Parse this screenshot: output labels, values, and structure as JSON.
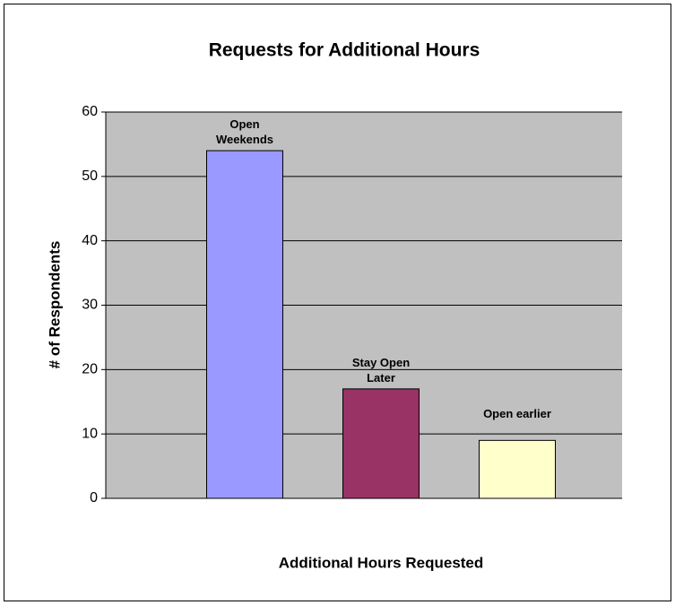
{
  "chart_data": {
    "type": "bar",
    "title": "Requests for Additional Hours",
    "y_label": "# of Respondents",
    "x_label": "Additional Hours Requested",
    "categories": [
      "Open Weekends",
      "Stay Open Later",
      "Open earlier"
    ],
    "values": [
      54,
      17,
      9
    ],
    "colors": [
      "#9999ff",
      "#993366",
      "#ffffcc"
    ],
    "ylim": [
      0,
      60
    ],
    "yticks": [
      0,
      10,
      20,
      30,
      40,
      50,
      60
    ],
    "grid": true
  }
}
